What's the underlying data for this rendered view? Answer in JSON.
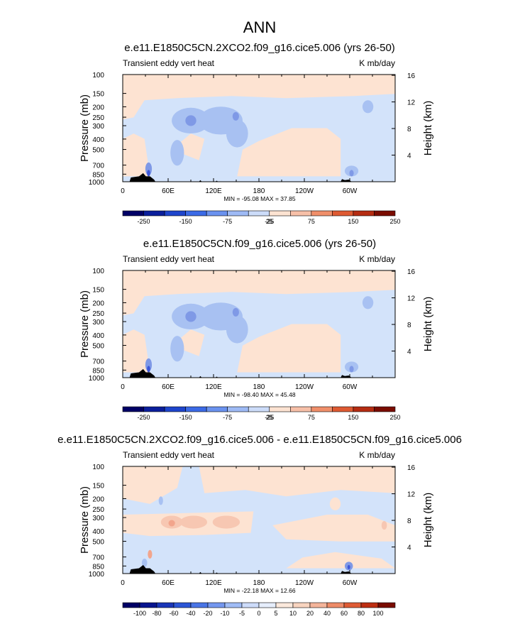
{
  "figure_title": "ANN",
  "chart_data": [
    {
      "type": "heatmap",
      "title": "e.e11.E1850C5CN.2XCO2.f09_g16.cice5.006 (yrs 26-50)",
      "left_label": "Transient eddy vert heat",
      "right_label": "K mb/day",
      "ylabel": "Pressure (mb)",
      "ylabel_right": "Height (km)",
      "xlabel": "",
      "x_ticks": [
        "0",
        "60E",
        "120E",
        "180",
        "120W",
        "60W"
      ],
      "pressure_ticks": [
        "100",
        "150",
        "200",
        "250",
        "300",
        "400",
        "500",
        "700",
        "850",
        "1000"
      ],
      "height_ticks": [
        "4",
        "8",
        "12",
        "16"
      ],
      "stats": "MIN = -95.08   MAX =  37.85",
      "min": -95.08,
      "max": 37.85,
      "colorbar_labels": [
        "-250",
        "-150",
        "-75",
        "-25",
        "25",
        "75",
        "150",
        "250"
      ]
    },
    {
      "type": "heatmap",
      "title": "e.e11.E1850C5CN.f09_g16.cice5.006 (yrs 26-50)",
      "left_label": "Transient eddy vert heat",
      "right_label": "K mb/day",
      "ylabel": "Pressure (mb)",
      "ylabel_right": "Height (km)",
      "xlabel": "",
      "x_ticks": [
        "0",
        "60E",
        "120E",
        "180",
        "120W",
        "60W"
      ],
      "pressure_ticks": [
        "100",
        "150",
        "200",
        "250",
        "300",
        "400",
        "500",
        "700",
        "850",
        "1000"
      ],
      "height_ticks": [
        "4",
        "8",
        "12",
        "16"
      ],
      "stats": "MIN = -98.40   MAX =  45.48",
      "min": -98.4,
      "max": 45.48,
      "colorbar_labels": [
        "-250",
        "-150",
        "-75",
        "-25",
        "25",
        "75",
        "150",
        "250"
      ]
    },
    {
      "type": "heatmap",
      "title": "e.e11.E1850C5CN.2XCO2.f09_g16.cice5.006 - e.e11.E1850C5CN.f09_g16.cice5.006",
      "left_label": "Transient eddy vert heat",
      "right_label": "K mb/day",
      "ylabel": "Pressure (mb)",
      "ylabel_right": "Height (km)",
      "xlabel": "",
      "x_ticks": [
        "0",
        "60E",
        "120E",
        "180",
        "120W",
        "60W"
      ],
      "pressure_ticks": [
        "100",
        "150",
        "200",
        "250",
        "300",
        "400",
        "500",
        "700",
        "850",
        "1000"
      ],
      "height_ticks": [
        "4",
        "8",
        "12",
        "16"
      ],
      "stats": "MIN = -22.18   MAX =  12.66",
      "min": -22.18,
      "max": 12.66,
      "colorbar_labels": [
        "-100",
        "-80",
        "-60",
        "-40",
        "-20",
        "-10",
        "-5",
        "0",
        "5",
        "10",
        "20",
        "40",
        "60",
        "80",
        "100"
      ]
    }
  ],
  "colors": {
    "ls": "#fde3d2",
    "lb": "#d3e3fa",
    "mb": "#a8c1f2",
    "db": "#7f99e6",
    "ddb": "#3c56d8",
    "s1": "#f7c7b2",
    "s2": "#f2a58c",
    "land": "#000000",
    "cbar12": [
      "#000066",
      "#0b1f9c",
      "#1e45cc",
      "#3b6ae6",
      "#6a92ef",
      "#9ebaf5",
      "#ccdcf9",
      "#fde3d2",
      "#f7c0a8",
      "#f08f6a",
      "#de5a32",
      "#b52c12",
      "#7a0c00"
    ],
    "cbar16": [
      "#000066",
      "#08158f",
      "#1a36b8",
      "#2c56d6",
      "#4a75e6",
      "#7497ef",
      "#a0bcf6",
      "#cddcfa",
      "#e6eefc",
      "#fbe9dc",
      "#f8d4bf",
      "#f4b49a",
      "#ee8b68",
      "#df5c35",
      "#bd2e12",
      "#7a0c00"
    ]
  }
}
